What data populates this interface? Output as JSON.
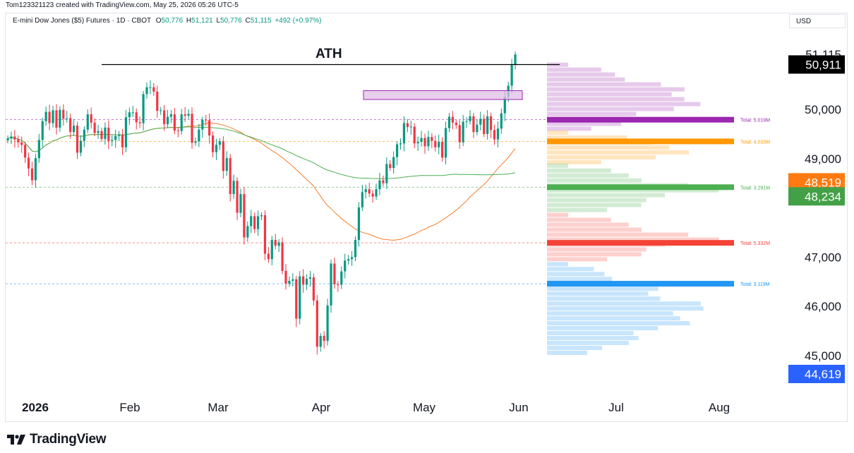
{
  "header": {
    "attribution": "Tom123321123 created with TradingView.com, May 25, 2026 05:26 UTC-5",
    "symbol": "E-mini Dow Jones ($5) Futures · 1D · CBOT",
    "o_label": "O",
    "o_val": "50,776",
    "h_label": "H",
    "h_val": "51,121",
    "l_label": "L",
    "l_val": "50,776",
    "c_label": "C",
    "c_val": "51,115",
    "change": "+492 (+0.97%)",
    "currency": "USD"
  },
  "footer": {
    "logo_text": "TradingView"
  },
  "colors": {
    "up": "#089981",
    "down": "#f23645",
    "ma_fast": "#f57c2a",
    "ma_slow": "#4caf50",
    "ath_zone": "#e1bee7",
    "ath_zone_border": "#9c27b0"
  },
  "chart_data": {
    "type": "candlestick",
    "annotation": "ATH",
    "x_ticks": [
      "2026",
      "Feb",
      "Mar",
      "Apr",
      "May",
      "Jun",
      "Jul",
      "Aug"
    ],
    "y_ticks": [
      "51,115",
      "50,000",
      "49,000",
      "47,000",
      "46,000",
      "45,000"
    ],
    "ylim": [
      44300,
      51600
    ],
    "ath_level": 50910,
    "resistance_zone": [
      50200,
      50380
    ],
    "price_labels": [
      {
        "value": 50911,
        "text": "50,911",
        "color": "#000000"
      },
      {
        "value": 48519,
        "text": "48,519",
        "color": "#ff7a10"
      },
      {
        "value": 48234,
        "text": "48,234",
        "color": "#43a047"
      },
      {
        "value": 44619,
        "text": "44,619",
        "color": "#2962ff"
      }
    ],
    "volume_profile_levels": [
      {
        "value": 49790,
        "text": "Total: 5.019M",
        "color": "#9c27b0"
      },
      {
        "value": 49350,
        "text": "Total: 4.033M",
        "color": "#ff9800"
      },
      {
        "value": 48420,
        "text": "Total: 3.291M",
        "color": "#4caf50"
      },
      {
        "value": 47290,
        "text": "Total: 5.332M",
        "color": "#f44336"
      },
      {
        "value": 46460,
        "text": "Total: 3.119M",
        "color": "#2196f3"
      }
    ],
    "closes": [
      49410,
      49450,
      49390,
      49330,
      49280,
      49020,
      48800,
      48560,
      49010,
      49380,
      49760,
      49950,
      49720,
      49980,
      49630,
      49990,
      49810,
      49820,
      49540,
      49670,
      49120,
      49360,
      49590,
      49900,
      49730,
      49520,
      49560,
      49400,
      49630,
      49360,
      49380,
      49460,
      49490,
      49230,
      49840,
      49940,
      49940,
      49740,
      49720,
      50310,
      50450,
      50450,
      50360,
      49970,
      49980,
      49700,
      49850,
      49900,
      49570,
      49560,
      49900,
      49870,
      49910,
      49320,
      49350,
      49590,
      49790,
      49780,
      49470,
      49130,
      49280,
      49350,
      48750,
      49010,
      48280,
      48550,
      47900,
      48280,
      47400,
      47630,
      47830,
      47570,
      47830,
      47850,
      47070,
      46960,
      47350,
      47230,
      47300,
      46720,
      46460,
      46520,
      46550,
      45750,
      46610,
      46440,
      46560,
      46590,
      46120,
      45180,
      45400,
      45300,
      46020,
      46870,
      46450,
      46440,
      46710,
      46930,
      46960,
      47000,
      47350,
      48010,
      48320,
      48380,
      48290,
      48230,
      48380,
      48560,
      48500,
      48890,
      48810,
      49030,
      49290,
      49310,
      49720,
      49640,
      49650,
      49310,
      49340,
      49420,
      49250,
      49440,
      49360,
      49230,
      49340,
      49020,
      49620,
      49850,
      49730,
      49680,
      49330,
      49750,
      49760,
      49860,
      49540,
      49690,
      49810,
      49500,
      49860,
      49580,
      49390,
      49610,
      49920,
      50250,
      50480,
      50910,
      51115
    ]
  }
}
